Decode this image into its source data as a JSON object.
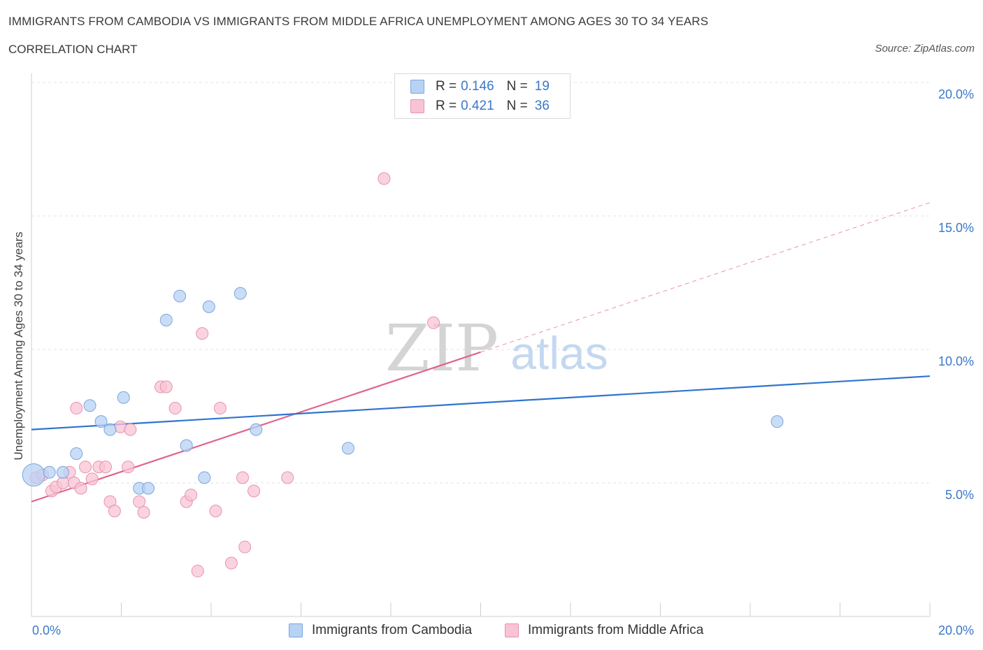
{
  "header": {
    "title": "IMMIGRANTS FROM CAMBODIA VS IMMIGRANTS FROM MIDDLE AFRICA UNEMPLOYMENT AMONG AGES 30 TO 34 YEARS",
    "subtitle": "CORRELATION CHART",
    "source": "Source: ZipAtlas.com"
  },
  "watermark": {
    "zip": "ZIP",
    "atlas": "atlas"
  },
  "legend": {
    "rows": [
      {
        "r_label": "R =",
        "r_value": "0.146",
        "n_label": "N =",
        "n_value": "19"
      },
      {
        "r_label": "R =",
        "r_value": "0.421",
        "n_label": "N =",
        "n_value": "36"
      }
    ]
  },
  "bottom_legend": {
    "cambodia": "Immigrants from Cambodia",
    "middle_africa": "Immigrants from Middle Africa"
  },
  "colors": {
    "cambodia_fill": "#b8d2f4",
    "cambodia_stroke": "#7aa6de",
    "cambodia_line": "#2f74cf",
    "africa_fill": "#f8c4d4",
    "africa_stroke": "#e893ae",
    "africa_line": "#e0648f",
    "tick_label": "#3a78c8",
    "grid": "#e3e3e3"
  },
  "chart_data": {
    "type": "scatter",
    "title": "IMMIGRANTS FROM CAMBODIA VS IMMIGRANTS FROM MIDDLE AFRICA UNEMPLOYMENT AMONG AGES 30 TO 34 YEARS",
    "xlabel": "",
    "ylabel": "Unemployment Among Ages 30 to 34 years",
    "xlim": [
      0,
      20
    ],
    "ylim": [
      0,
      20
    ],
    "x_tick_labels": [
      "0.0%",
      "20.0%"
    ],
    "y_ticks": [
      5,
      10,
      15,
      20
    ],
    "y_tick_labels": [
      "5.0%",
      "10.0%",
      "15.0%",
      "20.0%"
    ],
    "grid": true,
    "legend_position": "top-center",
    "series": [
      {
        "name": "Immigrants from Cambodia",
        "r": 0.146,
        "n": 19,
        "trend": {
          "x": [
            0,
            20
          ],
          "y": [
            7.0,
            9.0
          ]
        },
        "points": [
          [
            0.05,
            5.3
          ],
          [
            0.4,
            5.4
          ],
          [
            0.7,
            5.4
          ],
          [
            1.0,
            6.1
          ],
          [
            1.3,
            7.9
          ],
          [
            1.55,
            7.3
          ],
          [
            1.75,
            7.0
          ],
          [
            2.05,
            8.2
          ],
          [
            2.4,
            4.8
          ],
          [
            2.6,
            4.8
          ],
          [
            3.0,
            11.1
          ],
          [
            3.3,
            12.0
          ],
          [
            3.45,
            6.4
          ],
          [
            3.85,
            5.2
          ],
          [
            3.95,
            11.6
          ],
          [
            4.65,
            12.1
          ],
          [
            5.0,
            7.0
          ],
          [
            7.05,
            6.3
          ],
          [
            16.6,
            7.3
          ]
        ]
      },
      {
        "name": "Immigrants from Middle Africa",
        "r": 0.421,
        "n": 36,
        "trend": {
          "x": [
            0,
            10.0
          ],
          "y": [
            4.3,
            9.9
          ]
        },
        "trend_dashed": {
          "x": [
            10.0,
            20
          ],
          "y": [
            9.9,
            15.5
          ]
        },
        "points": [
          [
            0.1,
            5.2
          ],
          [
            0.25,
            5.3
          ],
          [
            0.45,
            4.7
          ],
          [
            0.55,
            4.85
          ],
          [
            0.7,
            5.0
          ],
          [
            0.85,
            5.4
          ],
          [
            0.95,
            5.0
          ],
          [
            1.0,
            7.8
          ],
          [
            1.1,
            4.8
          ],
          [
            1.2,
            5.6
          ],
          [
            1.35,
            5.15
          ],
          [
            1.5,
            5.6
          ],
          [
            1.65,
            5.6
          ],
          [
            1.75,
            4.3
          ],
          [
            1.85,
            3.95
          ],
          [
            1.98,
            7.1
          ],
          [
            2.15,
            5.6
          ],
          [
            2.2,
            7.0
          ],
          [
            2.4,
            4.3
          ],
          [
            2.5,
            3.9
          ],
          [
            2.88,
            8.6
          ],
          [
            3.0,
            8.6
          ],
          [
            3.2,
            7.8
          ],
          [
            3.45,
            4.3
          ],
          [
            3.55,
            4.55
          ],
          [
            3.7,
            1.7
          ],
          [
            3.8,
            10.6
          ],
          [
            4.1,
            3.95
          ],
          [
            4.2,
            7.8
          ],
          [
            4.45,
            2.0
          ],
          [
            4.7,
            5.2
          ],
          [
            4.75,
            2.6
          ],
          [
            4.95,
            4.7
          ],
          [
            5.7,
            5.2
          ],
          [
            7.85,
            16.4
          ],
          [
            8.95,
            11.0
          ]
        ]
      }
    ]
  }
}
